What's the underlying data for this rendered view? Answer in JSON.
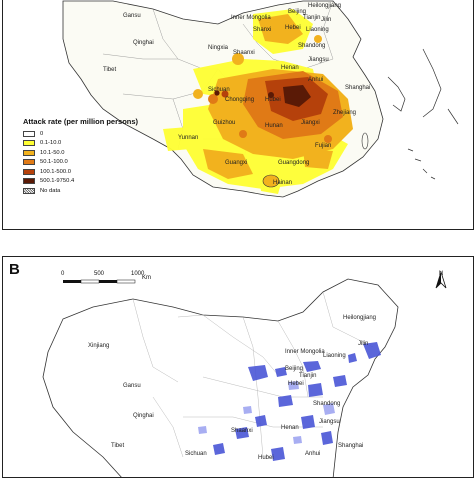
{
  "panel_a": {
    "provinces": [
      "Heilongjiang",
      "Jilin",
      "Liaoning",
      "Beijing",
      "Tianjin",
      "Hebei",
      "Shanxi",
      "Inner Mongolia",
      "Gansu",
      "Ningxia",
      "Shaanxi",
      "Shandong",
      "Qinghai",
      "Tibet",
      "Henan",
      "Jiangsu",
      "Anhui",
      "Shanghai",
      "Sichuan",
      "Chongqing",
      "Hubei",
      "Zhejiang",
      "Guizhou",
      "Hunan",
      "Jiangxi",
      "Fujian",
      "Yunnan",
      "Guangxi",
      "Guangdong",
      "Hainan"
    ],
    "legend": {
      "title": "Attack rate (per million persons)",
      "items": [
        {
          "label": "0",
          "color": "#ffffff"
        },
        {
          "label": "0.1-10.0",
          "color": "#ffff33"
        },
        {
          "label": "10.1-50.0",
          "color": "#f2b21e"
        },
        {
          "label": "50.1-100.0",
          "color": "#e07a16"
        },
        {
          "label": "100.1-500.0",
          "color": "#b5410b"
        },
        {
          "label": "500.1-9750.4",
          "color": "#5a1a06"
        },
        {
          "label": "No data",
          "color": "hatch"
        }
      ]
    }
  },
  "panel_b": {
    "letter": "B",
    "scale": {
      "ticks": [
        "0",
        "500",
        "1000"
      ],
      "unit": "Km"
    },
    "north": "N",
    "provinces": [
      "Heilongjiang",
      "Inner Mongolia",
      "Jilin",
      "Liaoning",
      "Xinjiang",
      "Gansu",
      "Beijing",
      "Tianjin",
      "Hebei",
      "Shandong",
      "Qinghai",
      "Tibet",
      "Shaanxi",
      "Henan",
      "Jiangsu",
      "Sichuan",
      "Hubei",
      "Anhui",
      "Shanghai"
    ]
  }
}
